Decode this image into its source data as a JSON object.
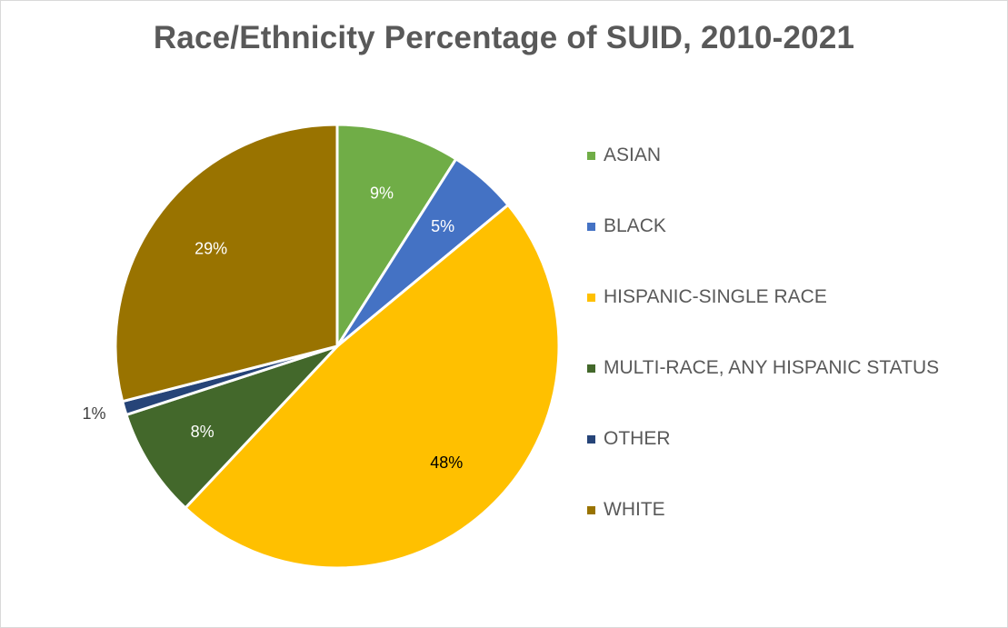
{
  "chart_data": {
    "type": "pie",
    "title": "Race/Ethnicity Percentage of SUID, 2010-2021",
    "legend_position": "right",
    "slices": [
      {
        "label": "ASIAN",
        "value": 9,
        "display": "9%",
        "color": "#70ad47",
        "label_color": "#ffffff",
        "label_outside": false
      },
      {
        "label": "BLACK",
        "value": 5,
        "display": "5%",
        "color": "#4472c4",
        "label_color": "#ffffff",
        "label_outside": false
      },
      {
        "label": "HISPANIC-SINGLE RACE",
        "value": 48,
        "display": "48%",
        "color": "#ffc000",
        "label_color": "#000000",
        "label_outside": false
      },
      {
        "label": "MULTI-RACE, ANY HISPANIC STATUS",
        "value": 8,
        "display": "8%",
        "color": "#43682b",
        "label_color": "#ffffff",
        "label_outside": false
      },
      {
        "label": "OTHER",
        "value": 1,
        "display": "1%",
        "color": "#264478",
        "label_color": "#404040",
        "label_outside": true
      },
      {
        "label": "WHITE",
        "value": 29,
        "display": "29%",
        "color": "#997300",
        "label_color": "#ffffff",
        "label_outside": false
      }
    ]
  }
}
